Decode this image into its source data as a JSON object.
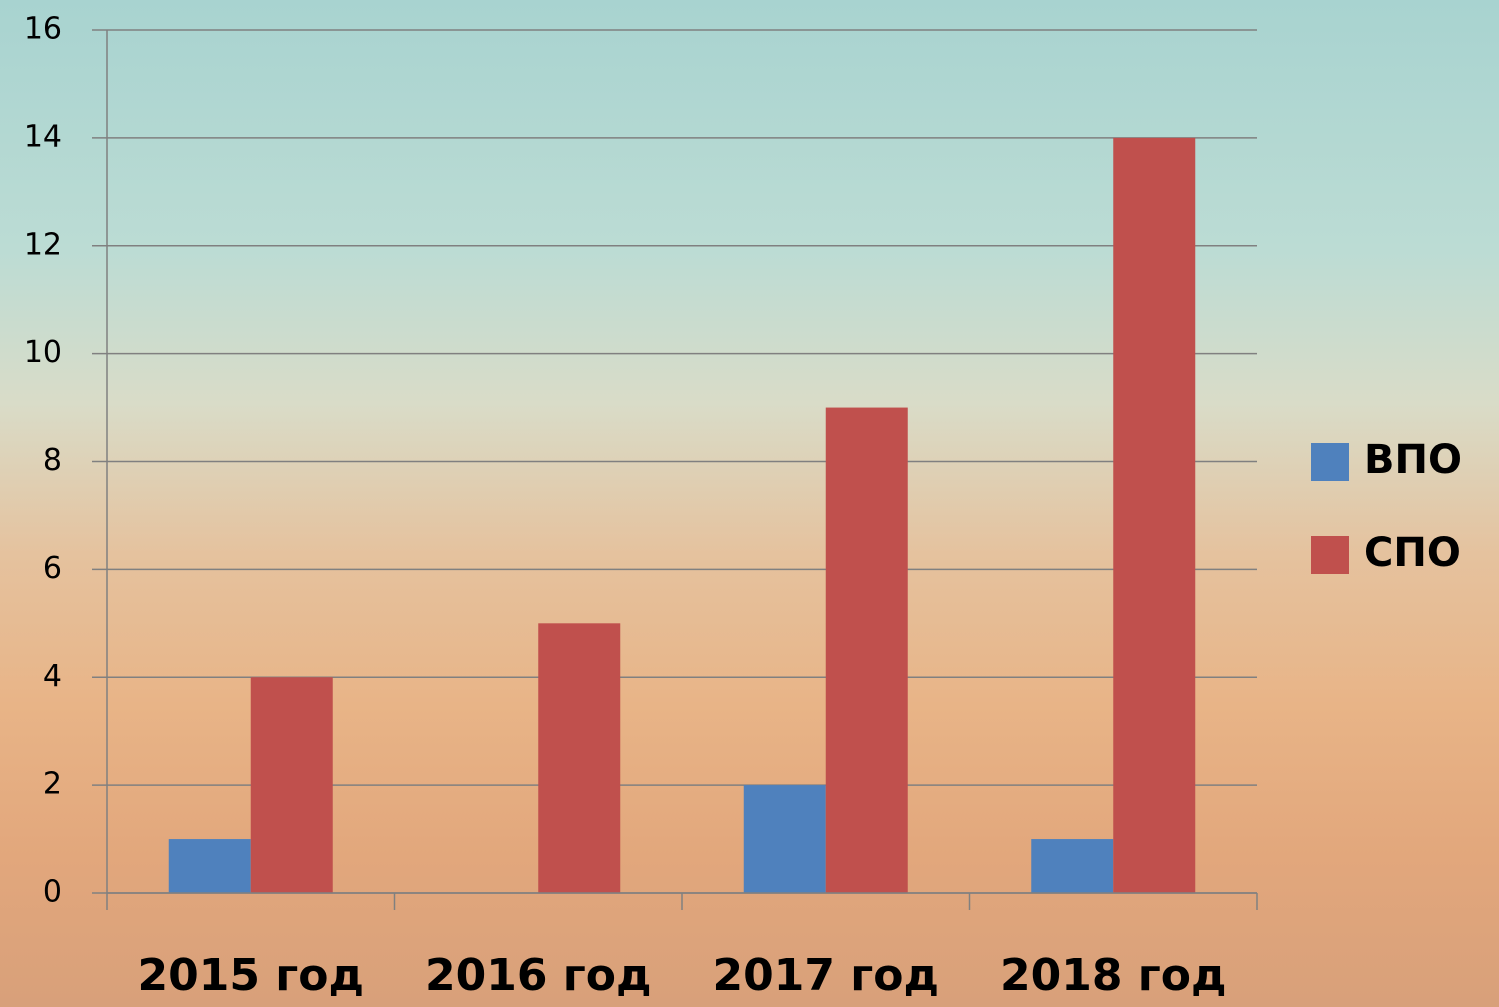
{
  "chart_data": {
    "type": "bar",
    "categories": [
      "2015 год",
      "2016 год",
      "2017 год",
      "2018 год"
    ],
    "series": [
      {
        "name": "ВПО",
        "color": "#4f81bd",
        "values": [
          1,
          0,
          2,
          1
        ]
      },
      {
        "name": "СПО",
        "color": "#c0504d",
        "values": [
          4,
          5,
          9,
          14
        ]
      }
    ],
    "ylim": [
      0,
      16
    ],
    "yticks": [
      0,
      2,
      4,
      6,
      8,
      10,
      12,
      14,
      16
    ],
    "grid": true,
    "legend": "right"
  }
}
